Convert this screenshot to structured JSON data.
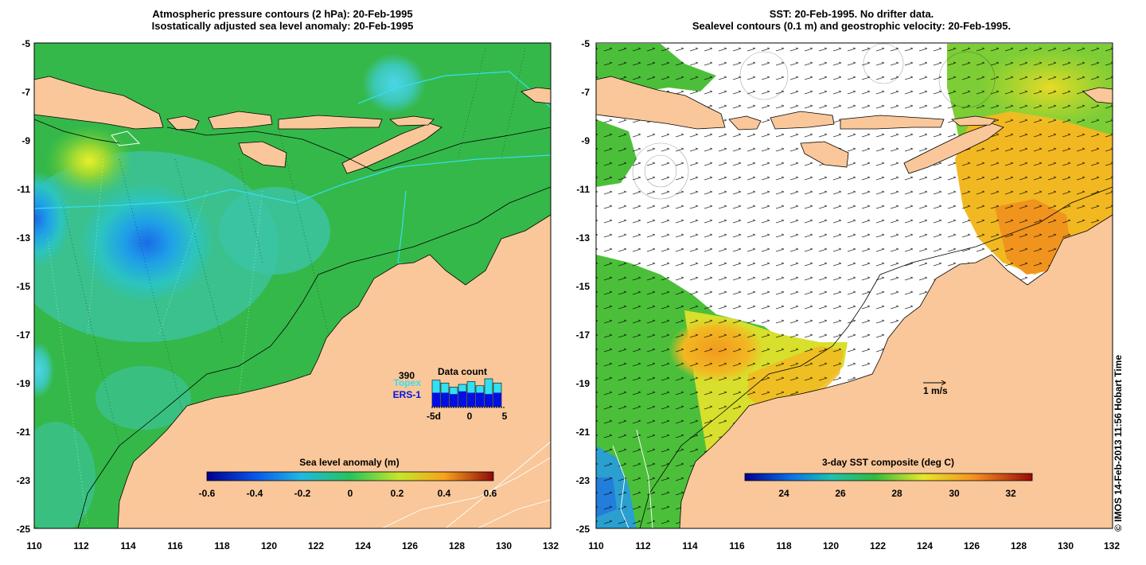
{
  "left_panel": {
    "title_line1": "Atmospheric pressure contours (2 hPa): 20-Feb-1995",
    "title_line2": "Isostatically adjusted sea level anomaly: 20-Feb-1995",
    "y_ticks": [
      "-5",
      "-7",
      "-9",
      "-11",
      "-13",
      "-15",
      "-17",
      "-19",
      "-21",
      "-23",
      "-25"
    ],
    "x_ticks": [
      "110",
      "112",
      "114",
      "116",
      "118",
      "120",
      "122",
      "124",
      "126",
      "128",
      "130",
      "132"
    ],
    "colorbar": {
      "title": "Sea level anomaly (m)",
      "ticks": [
        "-0.6",
        "-0.4",
        "-0.2",
        "0",
        "0.2",
        "0.4",
        "0.6"
      ]
    },
    "data_count": {
      "count": "390",
      "label_topex": "Topex",
      "label_ers": "ERS-1",
      "title": "Data count",
      "axis_ticks": [
        "-5d",
        "0",
        "5"
      ],
      "topex_bars": [
        0.95,
        0.85,
        0.7,
        0.8,
        0.9,
        0.75,
        1.0,
        0.85
      ],
      "ers_bars": [
        0.5,
        0.5,
        0.45,
        0.55,
        0.5,
        0.5,
        0.45,
        0.5
      ]
    }
  },
  "right_panel": {
    "title_line1": "SST: 20-Feb-1995. No drifter data.",
    "title_line2": "Sealevel contours (0.1 m) and geostrophic velocity: 20-Feb-1995.",
    "y_ticks": [
      "-5",
      "-7",
      "-9",
      "-11",
      "-13",
      "-15",
      "-17",
      "-19",
      "-21",
      "-23",
      "-25"
    ],
    "x_ticks": [
      "110",
      "112",
      "114",
      "116",
      "118",
      "120",
      "122",
      "124",
      "126",
      "128",
      "130",
      "132"
    ],
    "colorbar": {
      "title": "3-day SST composite (deg C)",
      "ticks": [
        "24",
        "26",
        "28",
        "30",
        "32"
      ]
    },
    "velocity_scale_label": "1 m/s"
  },
  "copyright": "© IMOS 14-Feb-2013 11:56 Hobart Time",
  "colors": {
    "land": "#f9c79a",
    "ocean_green": "#35b84a",
    "ocean_cyan": "#3cc4a6",
    "topex": "#33e0f0",
    "ers": "#0010e0",
    "cloud": "#ffffff"
  }
}
